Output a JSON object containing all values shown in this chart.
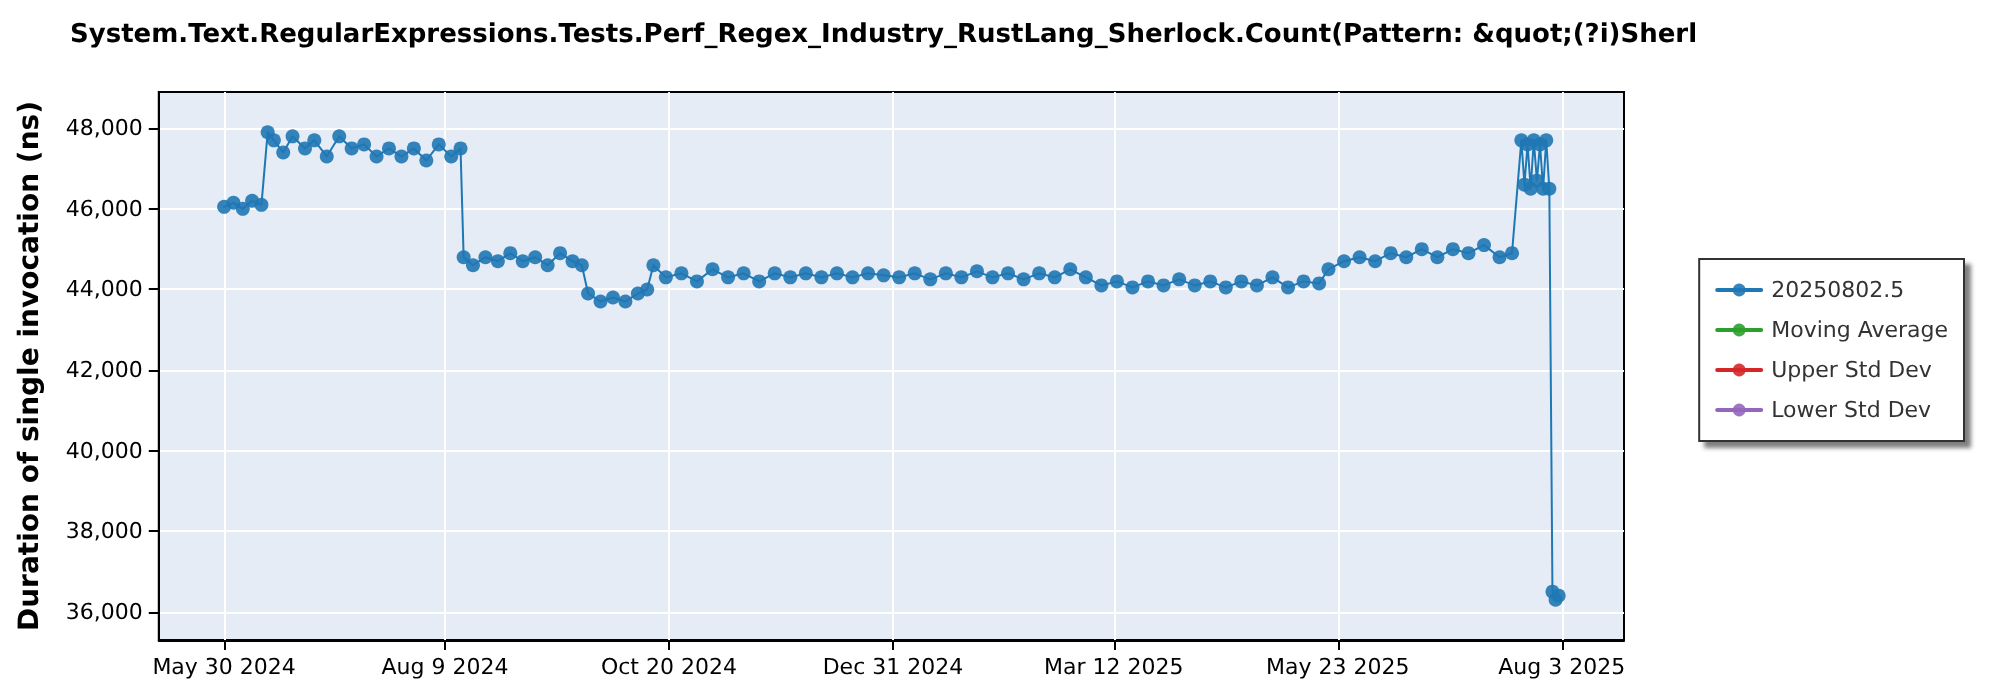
{
  "chart_data": {
    "type": "line",
    "title": "System.Text.RegularExpressions.Tests.Perf_Regex_Industry_RustLang_Sherlock.Count(Pattern: &quot;(?i)Sherl",
    "ylabel": "Duration of single invocation (ns)",
    "x": [
      "2024-05-30",
      "2024-06-02",
      "2024-06-05",
      "2024-06-08",
      "2024-06-11",
      "2024-06-13",
      "2024-06-15",
      "2024-06-18",
      "2024-06-21",
      "2024-06-25",
      "2024-06-28",
      "2024-07-02",
      "2024-07-06",
      "2024-07-10",
      "2024-07-14",
      "2024-07-18",
      "2024-07-22",
      "2024-07-26",
      "2024-07-30",
      "2024-08-03",
      "2024-08-07",
      "2024-08-11",
      "2024-08-14",
      "2024-08-15",
      "2024-08-18",
      "2024-08-22",
      "2024-08-26",
      "2024-08-30",
      "2024-09-03",
      "2024-09-07",
      "2024-09-11",
      "2024-09-15",
      "2024-09-19",
      "2024-09-22",
      "2024-09-24",
      "2024-09-28",
      "2024-10-02",
      "2024-10-06",
      "2024-10-10",
      "2024-10-13",
      "2024-10-15",
      "2024-10-19",
      "2024-10-24",
      "2024-10-29",
      "2024-11-03",
      "2024-11-08",
      "2024-11-13",
      "2024-11-18",
      "2024-11-23",
      "2024-11-28",
      "2024-12-03",
      "2024-12-08",
      "2024-12-13",
      "2024-12-18",
      "2024-12-23",
      "2024-12-28",
      "2025-01-02",
      "2025-01-07",
      "2025-01-12",
      "2025-01-17",
      "2025-01-22",
      "2025-01-27",
      "2025-02-01",
      "2025-02-06",
      "2025-02-11",
      "2025-02-16",
      "2025-02-21",
      "2025-02-26",
      "2025-03-03",
      "2025-03-08",
      "2025-03-13",
      "2025-03-18",
      "2025-03-23",
      "2025-03-28",
      "2025-04-02",
      "2025-04-07",
      "2025-04-12",
      "2025-04-17",
      "2025-04-22",
      "2025-04-27",
      "2025-05-02",
      "2025-05-07",
      "2025-05-12",
      "2025-05-17",
      "2025-05-20",
      "2025-05-25",
      "2025-05-30",
      "2025-06-04",
      "2025-06-09",
      "2025-06-14",
      "2025-06-19",
      "2025-06-24",
      "2025-06-29",
      "2025-07-04",
      "2025-07-09",
      "2025-07-14",
      "2025-07-18",
      "2025-07-21",
      "2025-07-22",
      "2025-07-23",
      "2025-07-24",
      "2025-07-25",
      "2025-07-26",
      "2025-07-27",
      "2025-07-28",
      "2025-07-29",
      "2025-07-30",
      "2025-07-31",
      "2025-08-01",
      "2025-08-02"
    ],
    "series": [
      {
        "name": "20250802.5",
        "color": "#1f77b4",
        "values": [
          46050,
          46150,
          46000,
          46200,
          46100,
          47900,
          47700,
          47400,
          47800,
          47500,
          47700,
          47300,
          47800,
          47500,
          47600,
          47300,
          47500,
          47300,
          47500,
          47200,
          47600,
          47300,
          47500,
          44800,
          44600,
          44800,
          44700,
          44900,
          44700,
          44800,
          44600,
          44900,
          44700,
          44600,
          43900,
          43700,
          43800,
          43700,
          43900,
          44000,
          44600,
          44300,
          44400,
          44200,
          44500,
          44300,
          44400,
          44200,
          44400,
          44300,
          44400,
          44300,
          44400,
          44300,
          44400,
          44350,
          44300,
          44400,
          44250,
          44400,
          44300,
          44450,
          44300,
          44400,
          44250,
          44400,
          44300,
          44500,
          44300,
          44100,
          44200,
          44050,
          44200,
          44100,
          44250,
          44100,
          44200,
          44050,
          44200,
          44100,
          44300,
          44050,
          44200,
          44150,
          44500,
          44700,
          44800,
          44700,
          44900,
          44800,
          45000,
          44800,
          45000,
          44900,
          45100,
          44800,
          44900,
          47700,
          46600,
          47600,
          46500,
          47700,
          46700,
          47600,
          46500,
          47700,
          46500,
          36500,
          36300,
          36400
        ]
      },
      {
        "name": "Moving Average",
        "color": "#2ca02c",
        "values": [
          null,
          null,
          null,
          null,
          null,
          null,
          null,
          null,
          null,
          null,
          null,
          null,
          null,
          null,
          null,
          null,
          null,
          null,
          null,
          null,
          null,
          null,
          null,
          null,
          null,
          null,
          null,
          null,
          null,
          null,
          null,
          null,
          null,
          null,
          null,
          null,
          null,
          null,
          null,
          null,
          null,
          null,
          null,
          null,
          null,
          null,
          null,
          null,
          null,
          null,
          null,
          null,
          null,
          null,
          null,
          null,
          null,
          null,
          null,
          null,
          null,
          null,
          null,
          null,
          null,
          null,
          null,
          null,
          null,
          null,
          null,
          null,
          null,
          null,
          null,
          null,
          null,
          null,
          null,
          null,
          null,
          null,
          null,
          null,
          null,
          null,
          null,
          null,
          null,
          null,
          null,
          null,
          null,
          null,
          null,
          null,
          null,
          null,
          null,
          null,
          null,
          null,
          null,
          null,
          null,
          null,
          null,
          null,
          null,
          null
        ]
      },
      {
        "name": "Upper Std Dev",
        "color": "#d62728",
        "values": [
          null,
          null,
          null,
          null,
          null,
          null,
          null,
          null,
          null,
          null,
          null,
          null,
          null,
          null,
          null,
          null,
          null,
          null,
          null,
          null,
          null,
          null,
          null,
          null,
          null,
          null,
          null,
          null,
          null,
          null,
          null,
          null,
          null,
          null,
          null,
          null,
          null,
          null,
          null,
          null,
          null,
          null,
          null,
          null,
          null,
          null,
          null,
          null,
          null,
          null,
          null,
          null,
          null,
          null,
          null,
          null,
          null,
          null,
          null,
          null,
          null,
          null,
          null,
          null,
          null,
          null,
          null,
          null,
          null,
          null,
          null,
          null,
          null,
          null,
          null,
          null,
          null,
          null,
          null,
          null,
          null,
          null,
          null,
          null,
          null,
          null,
          null,
          null,
          null,
          null,
          null,
          null,
          null,
          null,
          null,
          null,
          null,
          null,
          null,
          null,
          null,
          null,
          null,
          null,
          null,
          null,
          null,
          null,
          null,
          null
        ]
      },
      {
        "name": "Lower Std Dev",
        "color": "#9467bd",
        "values": [
          null,
          null,
          null,
          null,
          null,
          null,
          null,
          null,
          null,
          null,
          null,
          null,
          null,
          null,
          null,
          null,
          null,
          null,
          null,
          null,
          null,
          null,
          null,
          null,
          null,
          null,
          null,
          null,
          null,
          null,
          null,
          null,
          null,
          null,
          null,
          null,
          null,
          null,
          null,
          null,
          null,
          null,
          null,
          null,
          null,
          null,
          null,
          null,
          null,
          null,
          null,
          null,
          null,
          null,
          null,
          null,
          null,
          null,
          null,
          null,
          null,
          null,
          null,
          null,
          null,
          null,
          null,
          null,
          null,
          null,
          null,
          null,
          null,
          null,
          null,
          null,
          null,
          null,
          null,
          null,
          null,
          null,
          null,
          null,
          null,
          null,
          null,
          null,
          null,
          null,
          null,
          null,
          null,
          null,
          null,
          null,
          null,
          null,
          null,
          null,
          null,
          null,
          null,
          null,
          null,
          null,
          null,
          null,
          null,
          null
        ]
      }
    ],
    "xlim": [
      "2024-05-09",
      "2025-08-23"
    ],
    "xticks": [
      {
        "value": "2024-05-30",
        "label": "May 30 2024"
      },
      {
        "value": "2024-08-09",
        "label": "Aug 9 2024"
      },
      {
        "value": "2024-10-20",
        "label": "Oct 20 2024"
      },
      {
        "value": "2024-12-31",
        "label": "Dec 31 2024"
      },
      {
        "value": "2025-03-12",
        "label": "Mar 12 2025"
      },
      {
        "value": "2025-05-23",
        "label": "May 23 2025"
      },
      {
        "value": "2025-08-03",
        "label": "Aug 3 2025"
      }
    ],
    "ylim": [
      35300,
      48900
    ],
    "yticks": [
      {
        "value": 36000,
        "label": "36,000"
      },
      {
        "value": 38000,
        "label": "38,000"
      },
      {
        "value": 40000,
        "label": "40,000"
      },
      {
        "value": 42000,
        "label": "42,000"
      },
      {
        "value": 44000,
        "label": "44,000"
      },
      {
        "value": 46000,
        "label": "46,000"
      },
      {
        "value": 48000,
        "label": "48,000"
      }
    ],
    "grid": true,
    "legend": "right",
    "marker": "circle",
    "line_style": "solid"
  }
}
